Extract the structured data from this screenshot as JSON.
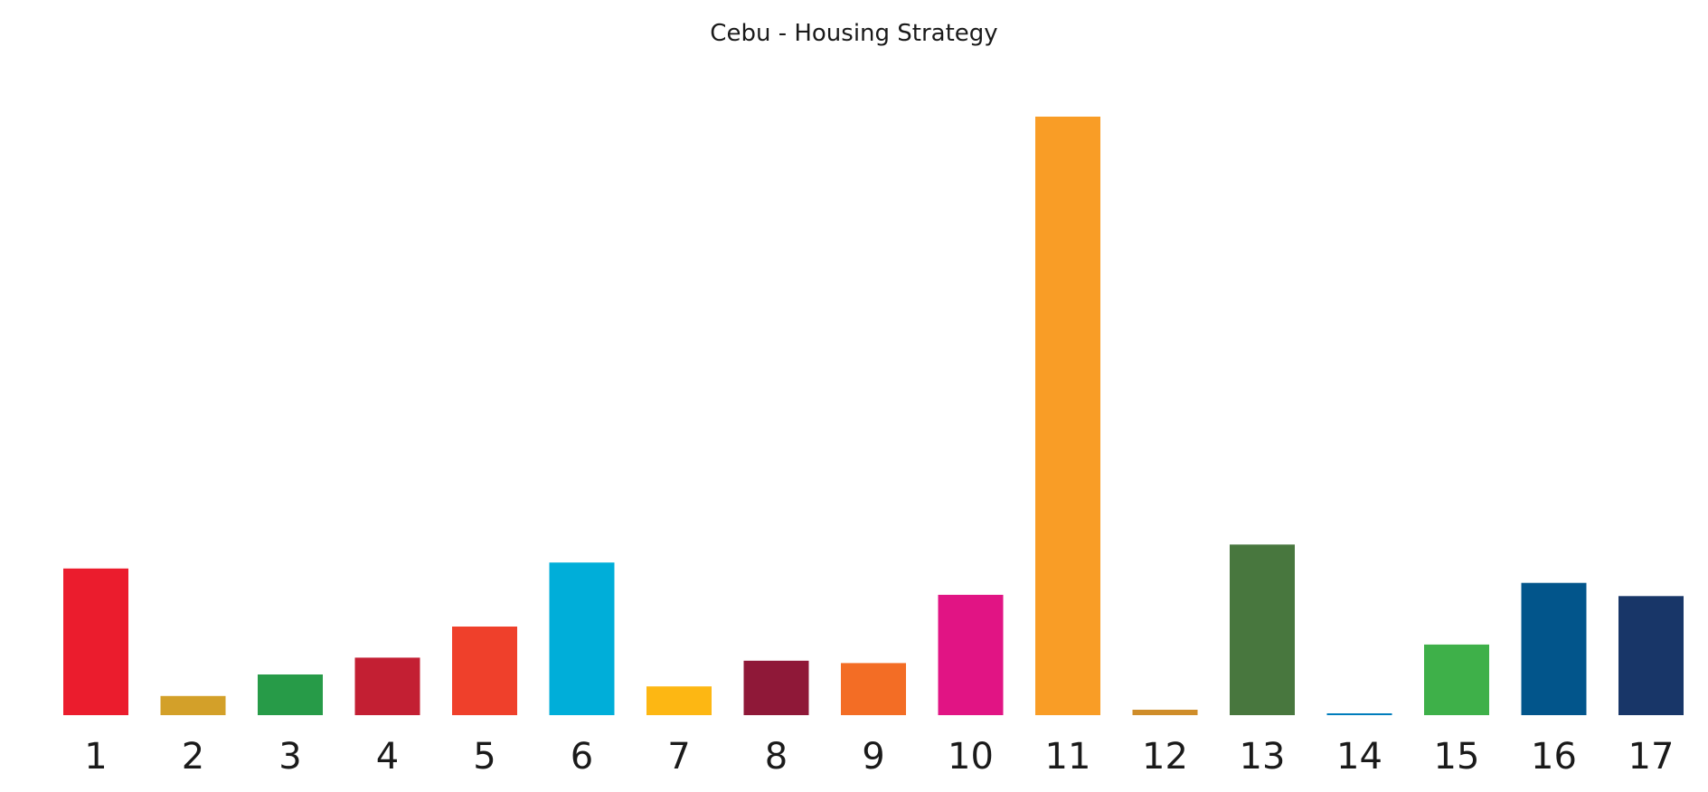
{
  "chart_data": {
    "type": "bar",
    "title": "Cebu - Housing Strategy",
    "xlabel": "",
    "ylabel": "",
    "grid": false,
    "legend": "none",
    "categories": [
      "1",
      "2",
      "3",
      "4",
      "5",
      "6",
      "7",
      "8",
      "9",
      "10",
      "11",
      "12",
      "13",
      "14",
      "15",
      "16",
      "17"
    ],
    "values": [
      24.5,
      3.2,
      6.8,
      9.6,
      14.8,
      25.5,
      4.8,
      9.1,
      8.7,
      20.1,
      100,
      0.9,
      28.5,
      0.25,
      11.8,
      22.1,
      19.9
    ],
    "ylim": [
      0,
      100
    ],
    "colors": [
      "#eb1c2d",
      "#d3a029",
      "#279b48",
      "#c31f33",
      "#ef402b",
      "#00aed9",
      "#fdb713",
      "#8f1838",
      "#f36d25",
      "#e11484",
      "#f99d26",
      "#cf8d2a",
      "#48773e",
      "#007dbc",
      "#3eb049",
      "#02558b",
      "#183668"
    ]
  }
}
